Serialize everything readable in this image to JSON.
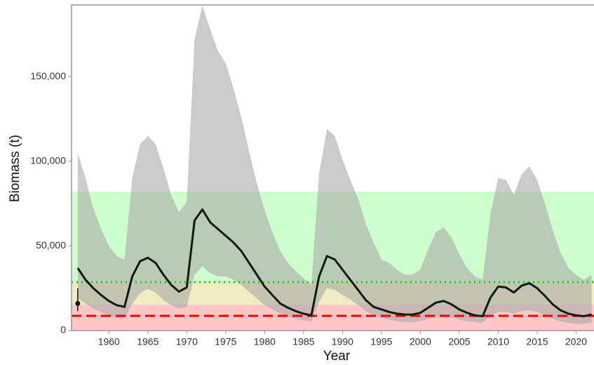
{
  "chart_data": {
    "type": "line",
    "x_label": "Year",
    "y_label": "Biomass (t)",
    "x": [
      1956,
      1957,
      1958,
      1959,
      1960,
      1961,
      1962,
      1963,
      1964,
      1965,
      1966,
      1967,
      1968,
      1969,
      1970,
      1971,
      1972,
      1973,
      1974,
      1975,
      1976,
      1977,
      1978,
      1979,
      1980,
      1981,
      1982,
      1983,
      1984,
      1985,
      1986,
      1987,
      1988,
      1989,
      1990,
      1991,
      1992,
      1993,
      1994,
      1995,
      1996,
      1997,
      1998,
      1999,
      2000,
      2001,
      2002,
      2003,
      2004,
      2005,
      2006,
      2007,
      2008,
      2009,
      2010,
      2011,
      2012,
      2013,
      2014,
      2015,
      2016,
      2017,
      2018,
      2019,
      2020,
      2021,
      2022
    ],
    "series": [
      {
        "color": "#0a1f0a",
        "values": [
          36900,
          30000,
          25000,
          21000,
          17500,
          15000,
          14000,
          32000,
          41000,
          43000,
          40000,
          33000,
          27000,
          23000,
          25500,
          65000,
          71500,
          64000,
          60000,
          56000,
          52000,
          47000,
          40000,
          33000,
          26000,
          21000,
          16000,
          13500,
          11500,
          10000,
          9000,
          32000,
          44000,
          42000,
          36000,
          30000,
          24000,
          18000,
          14000,
          12500,
          11000,
          10000,
          9500,
          9500,
          10500,
          13500,
          16500,
          17500,
          15500,
          12500,
          10500,
          9000,
          8500,
          19500,
          26000,
          25500,
          22500,
          26500,
          28000,
          25000,
          20500,
          15500,
          12000,
          10000,
          9000,
          8500,
          9500
        ]
      }
    ],
    "band": {
      "color": "#a8a8a8",
      "opacity": 0.6,
      "upper": [
        105000,
        90000,
        72000,
        60000,
        50000,
        44000,
        42000,
        90000,
        110000,
        115000,
        110000,
        96000,
        80000,
        70000,
        76000,
        172000,
        192000,
        178000,
        165000,
        158000,
        143000,
        126000,
        106000,
        87000,
        71000,
        58000,
        47000,
        40000,
        35000,
        31000,
        27000,
        93000,
        119000,
        115000,
        101000,
        89000,
        78000,
        63000,
        52000,
        42000,
        40000,
        36000,
        33000,
        33000,
        36000,
        48000,
        58000,
        61000,
        55000,
        45000,
        37000,
        32000,
        30000,
        69000,
        90000,
        89000,
        80000,
        92000,
        97000,
        89000,
        75000,
        59000,
        46000,
        37000,
        33000,
        30000,
        33000
      ],
      "lower": [
        19000,
        16000,
        13000,
        11000,
        9000,
        7500,
        7000,
        16000,
        22000,
        24500,
        22500,
        18000,
        15000,
        13000,
        14000,
        33000,
        38000,
        34000,
        32000,
        32000,
        30000,
        27000,
        23000,
        19000,
        15000,
        12500,
        10000,
        8000,
        7000,
        6000,
        5500,
        17000,
        25000,
        24000,
        21000,
        18500,
        15000,
        11500,
        9000,
        7500,
        6500,
        5500,
        5000,
        5000,
        5500,
        7000,
        8500,
        9000,
        8000,
        6500,
        5500,
        5000,
        4500,
        9000,
        11000,
        11000,
        10000,
        11500,
        12000,
        11000,
        9000,
        7000,
        5500,
        4500,
        4000,
        4000,
        4500
      ]
    },
    "zones": [
      {
        "from": 0,
        "to": 15300,
        "color": "#ff0000",
        "opacity": 0.22
      },
      {
        "from": 15300,
        "to": 28600,
        "color": "#c8b400",
        "opacity": 0.25
      },
      {
        "from": 28600,
        "to": 82000,
        "color": "#00ff00",
        "opacity": 0.2
      }
    ],
    "hlines": [
      {
        "value": 28600,
        "color": "#00dd00",
        "dash": "2 5"
      },
      {
        "value": 8700,
        "color": "#ee0000",
        "dash": "14 7"
      }
    ],
    "point": {
      "x": 1956,
      "value": 16000,
      "low": 11500,
      "high": 25000,
      "color": "#111111"
    },
    "xlim": [
      1955.2,
      2022.3
    ],
    "ylim": [
      0,
      192300
    ],
    "xticks": [
      1960,
      1965,
      1970,
      1975,
      1980,
      1985,
      1990,
      1995,
      2000,
      2005,
      2010,
      2015,
      2020
    ],
    "yticks": [
      0,
      {
        "value": 50000,
        "label": "50,000"
      },
      {
        "value": 100000,
        "label": "100,000"
      },
      {
        "value": 150000,
        "label": "150,000"
      }
    ]
  }
}
